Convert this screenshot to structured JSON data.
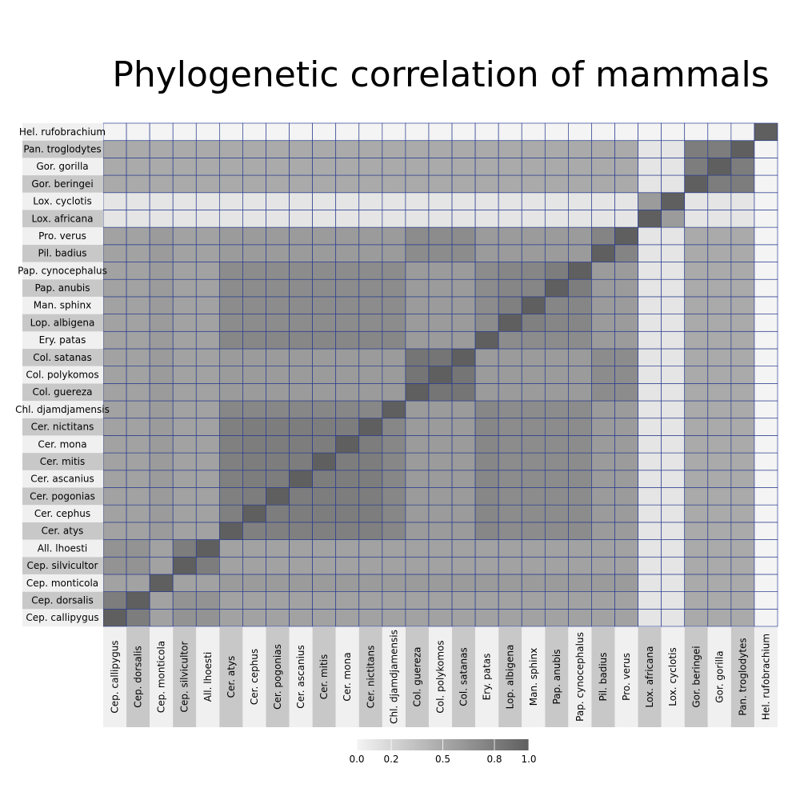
{
  "chart_data": {
    "type": "heatmap",
    "title": "Phylogenetic correlation of mammals",
    "xlabel": "",
    "ylabel": "",
    "taxa": [
      "Cep. callipygus",
      "Cep. dorsalis",
      "Cep. monticola",
      "Cep. silvicultor",
      "All. lhoesti",
      "Cer. atys",
      "Cer. cephus",
      "Cer. pogonias",
      "Cer. ascanius",
      "Cer. mitis",
      "Cer. mona",
      "Cer. nictitans",
      "Chl. djamdjamensis",
      "Col. guereza",
      "Col. polykomos",
      "Col. satanas",
      "Ery. patas",
      "Lop. albigena",
      "Man. sphinx",
      "Pap. anubis",
      "Pap. cynocephalus",
      "Pil. badius",
      "Pro. verus",
      "Lox. africana",
      "Lox. cyclotis",
      "Gor. beringei",
      "Gor. gorilla",
      "Pan. troglodytes",
      "Hel. rufobrachium"
    ],
    "y_order": "bottom-to-top",
    "value_rule": "correlation = shared phylogenetic depth between two taxa; diagonal = 1.0",
    "colorbar": {
      "ticks": [
        0.0,
        0.2,
        0.5,
        0.8,
        1.0
      ],
      "tick_labels": [
        "0.0",
        "0.2",
        "0.5",
        "0.8",
        "1.0"
      ],
      "range": [
        0,
        1
      ],
      "color_low": "#f4f4f4",
      "color_high": "#5f5f5f"
    },
    "grid": true,
    "grid_color": "#2b3d8f",
    "label_band_colors": [
      "#f0f0f0",
      "#c8c8c8"
    ]
  }
}
